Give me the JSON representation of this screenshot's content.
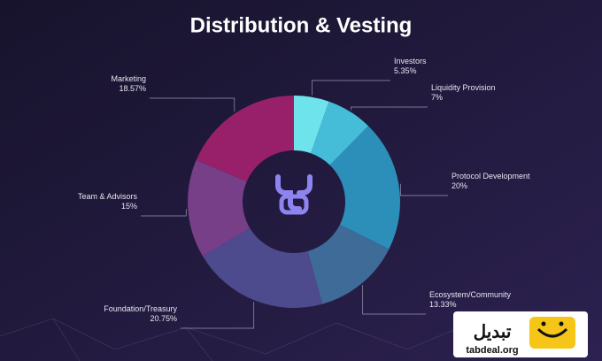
{
  "chart_data": {
    "type": "donut",
    "title": "Distribution & Vesting",
    "categories": [
      "Investors",
      "Liquidity Provision",
      "Protocol Development",
      "Ecosystem/Community",
      "Foundation/Treasury",
      "Team & Advisors",
      "Marketing"
    ],
    "values": [
      5.35,
      7,
      20,
      13.33,
      20.75,
      15,
      18.57
    ],
    "value_labels": [
      "5.35%",
      "7%",
      "20%",
      "13.33%",
      "20.75%",
      "15%",
      "18.57%"
    ],
    "colors": [
      "#6fe3ec",
      "#45bdd8",
      "#2b8fba",
      "#3f6b98",
      "#4e4a8e",
      "#763f87",
      "#98206a"
    ]
  },
  "watermark": {
    "brand": "تبدیل",
    "url": "tabdeal.org"
  }
}
